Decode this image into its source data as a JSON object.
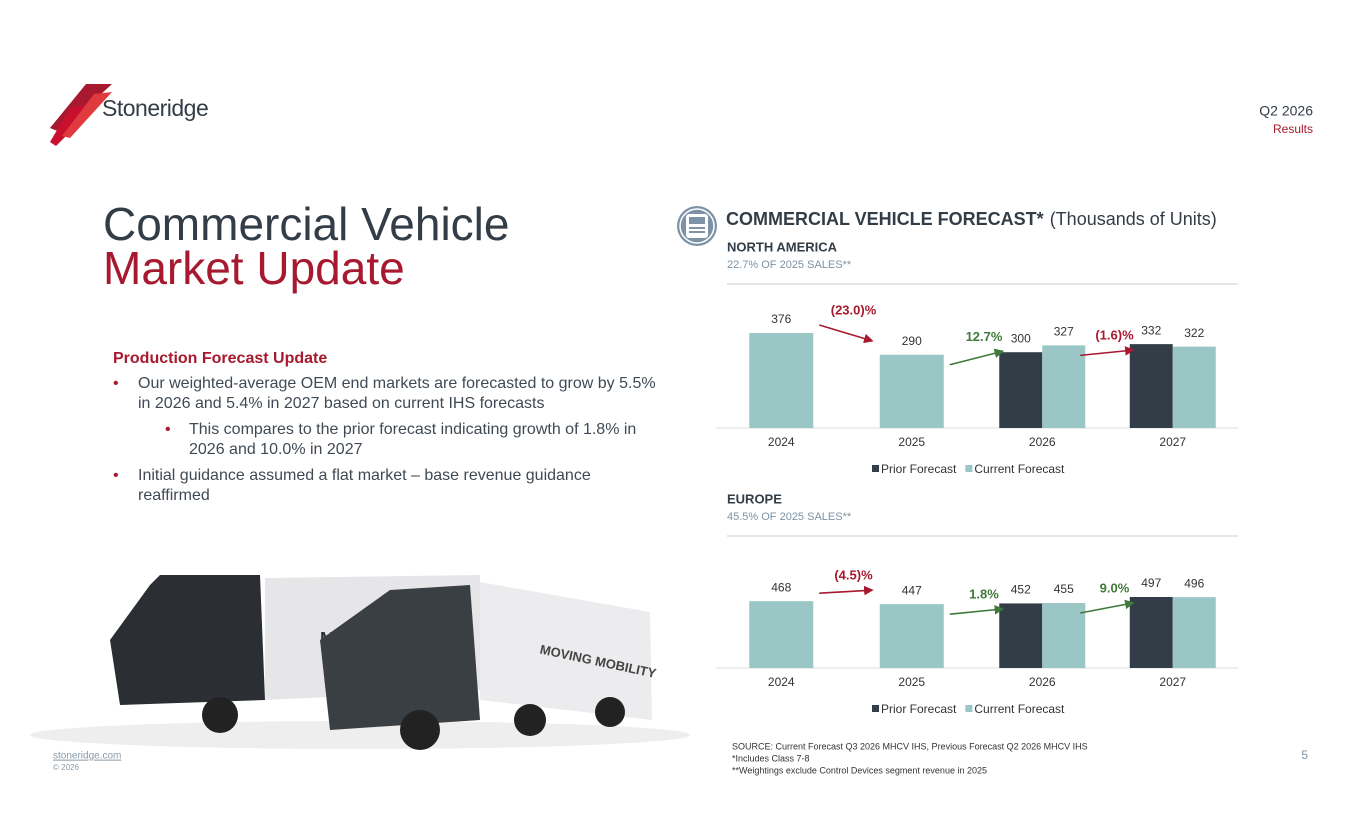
{
  "header": {
    "logo": "Stoneridge",
    "period": "Q2 2026",
    "subtitle": "Results"
  },
  "title": {
    "line1": "Commercial Vehicle",
    "line2": "Market Update"
  },
  "body": {
    "heading": "Production Forecast Update",
    "bullets": [
      {
        "text": "Our weighted-average OEM end markets are forecasted to grow by 5.5% in 2026 and 5.4% in 2027 based on current IHS forecasts",
        "sub": [
          "This compares to the prior forecast indicating growth of 1.8% in 2026 and 10.0% in 2027"
        ]
      },
      {
        "text": "Initial guidance assumed a flat market – base revenue guidance reaffirmed",
        "sub": []
      }
    ]
  },
  "forecast": {
    "title": "COMMERCIAL VEHICLE FORECAST*",
    "unit": "(Thousands of Units)"
  },
  "chart_data": [
    {
      "type": "bar",
      "title": "NORTH AMERICA",
      "subtitle": "22.7% OF 2025 SALES**",
      "categories": [
        "2024",
        "2025",
        "2026",
        "2027"
      ],
      "series": [
        {
          "name": "Prior Forecast",
          "color": "#333d47",
          "values": [
            null,
            null,
            300,
            332
          ]
        },
        {
          "name": "Current Forecast",
          "color": "#9ac6c5",
          "values": [
            376,
            290,
            327,
            322
          ]
        }
      ],
      "annotations": [
        {
          "text": "(23.0)%",
          "color": "#a6192e"
        },
        {
          "text": "12.7%",
          "color": "#3f7a3a"
        },
        {
          "text": "(1.6)%",
          "color": "#a6192e"
        }
      ],
      "legend": "bottom"
    },
    {
      "type": "bar",
      "title": "EUROPE",
      "subtitle": "45.5% OF 2025 SALES**",
      "categories": [
        "2024",
        "2025",
        "2026",
        "2027"
      ],
      "series": [
        {
          "name": "Prior Forecast",
          "color": "#333d47",
          "values": [
            null,
            null,
            452,
            497
          ]
        },
        {
          "name": "Current Forecast",
          "color": "#9ac6c5",
          "values": [
            468,
            447,
            455,
            496
          ]
        }
      ],
      "annotations": [
        {
          "text": "(4.5)%",
          "color": "#a6192e"
        },
        {
          "text": "1.8%",
          "color": "#3f7a3a"
        },
        {
          "text": "9.0%",
          "color": "#3f7a3a"
        }
      ],
      "legend": "bottom"
    }
  ],
  "footer": {
    "source": [
      "SOURCE: Current Forecast Q3 2026 MHCV IHS, Previous Forecast Q2 2026 MHCV IHS",
      "*Includes Class 7-8",
      "**Weightings exclude Control Devices segment revenue in 2025"
    ],
    "site": "stoneridge.com",
    "copyright": "© 2026",
    "page": 5
  }
}
